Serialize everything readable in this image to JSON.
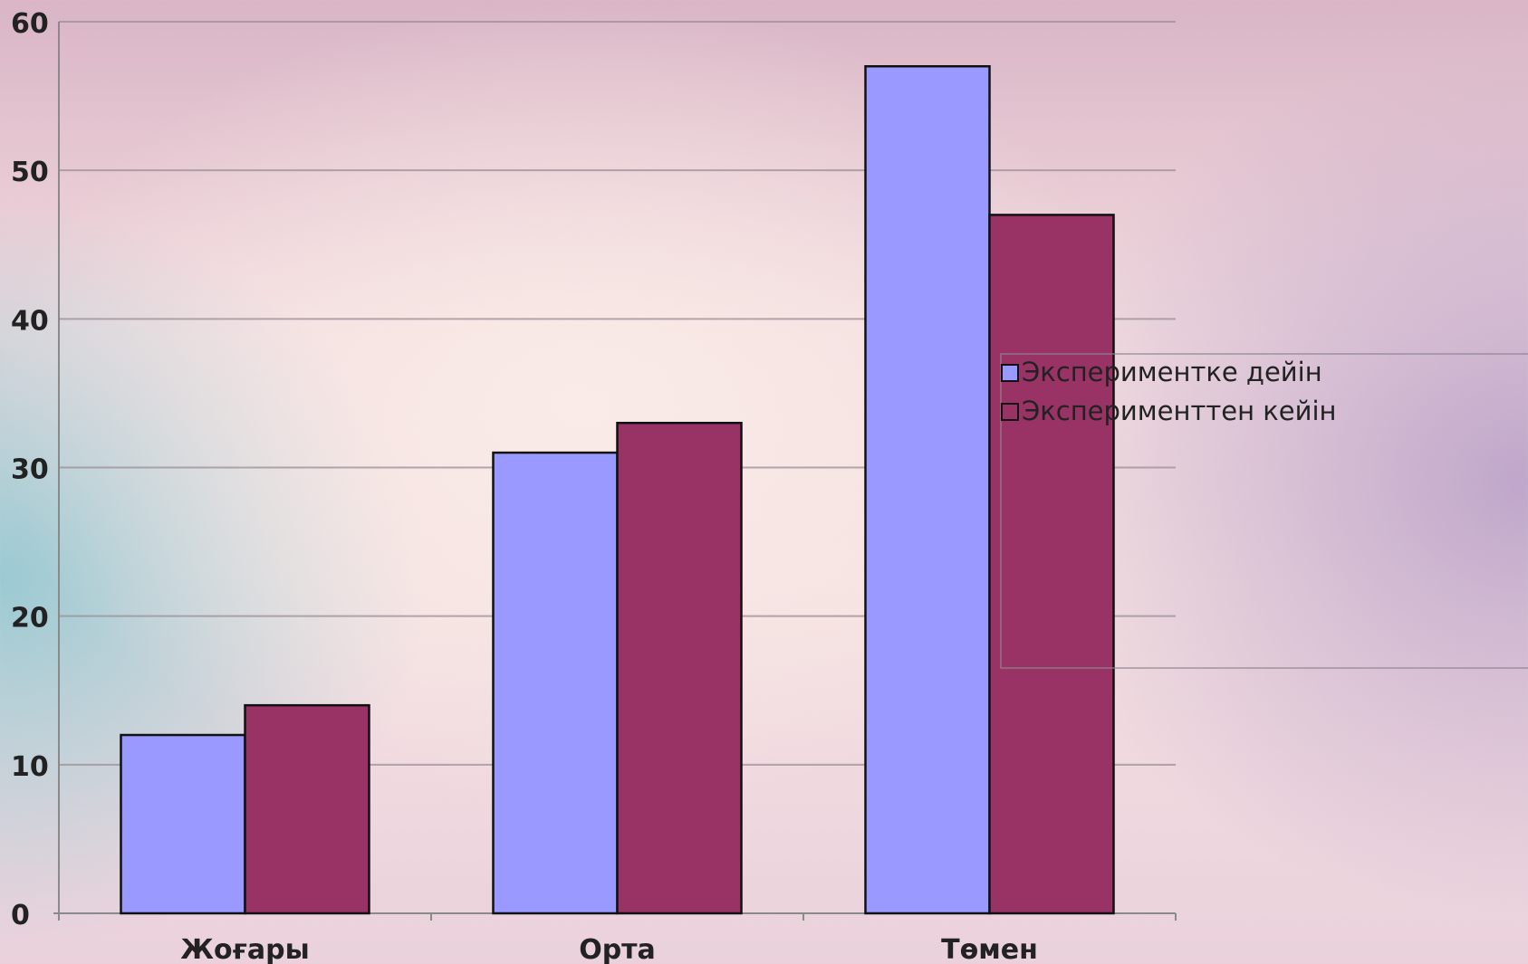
{
  "chart_data": {
    "type": "bar",
    "categories": [
      "Жоғары",
      "Орта",
      "Төмен"
    ],
    "series": [
      {
        "name": "Экспериментке дейін",
        "values": [
          12,
          31,
          57
        ],
        "color": "#9999ff"
      },
      {
        "name": "Эксперименттен кейін",
        "values": [
          14,
          33,
          47
        ],
        "color": "#993366"
      }
    ],
    "ylim": [
      0,
      60
    ],
    "yticks": [
      0,
      10,
      20,
      30,
      40,
      50,
      60
    ],
    "xlabel": "",
    "ylabel": "",
    "title": "",
    "grid": true,
    "legend_position": "right"
  }
}
